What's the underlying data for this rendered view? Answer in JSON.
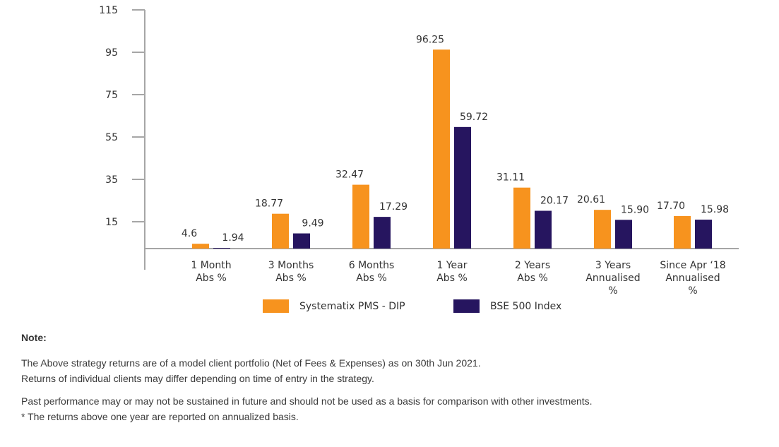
{
  "chart_data": {
    "type": "bar",
    "title": "",
    "xlabel": "",
    "ylabel": "",
    "ylim": [
      2.3,
      115
    ],
    "yticks": [
      115,
      95,
      75,
      55,
      35,
      15
    ],
    "grid": false,
    "legend_position": "bottom-center",
    "categories": [
      [
        "1 Month",
        "Abs %"
      ],
      [
        "3 Months",
        "Abs %"
      ],
      [
        "6 Months",
        "Abs %"
      ],
      [
        "1 Year",
        "Abs %"
      ],
      [
        "2 Years",
        "Abs %"
      ],
      [
        "3 Years",
        "Annualised",
        "%"
      ],
      [
        "Since Apr ‘18",
        "Annualised",
        "%"
      ]
    ],
    "series": [
      {
        "name": "Systematix PMS - DIP",
        "color": "#F7931E",
        "values": [
          4.6,
          18.77,
          32.47,
          96.25,
          31.11,
          20.61,
          17.7
        ],
        "labels": [
          "4.6",
          "18.77",
          "32.47",
          "96.25",
          "31.11",
          "20.61",
          "17.70"
        ]
      },
      {
        "name": "BSE 500 Index",
        "color": "#26155F",
        "values": [
          1.94,
          9.49,
          17.29,
          59.72,
          20.17,
          15.9,
          15.98
        ],
        "labels": [
          "1.94",
          "9.49",
          "17.29",
          "59.72",
          "20.17",
          "15.90",
          "15.98"
        ]
      }
    ]
  },
  "legend": {
    "items": [
      {
        "label": "Systematix PMS - DIP",
        "color": "#F7931E"
      },
      {
        "label": "BSE 500 Index",
        "color": "#26155F"
      }
    ]
  },
  "notes": {
    "title": "Note:",
    "lines": [
      "The Above strategy returns are of a model client portfolio (Net of Fees & Expenses) as on 30th Jun 2021.",
      "Returns of individual clients may differ depending on time of entry in the strategy.",
      "Past performance may or may not be sustained in future and should not be used as a basis for comparison with other investments.",
      "* The returns above one year are reported on annualized basis."
    ]
  },
  "colors": {
    "axis": "#A6A6A6",
    "text": "#333333"
  }
}
